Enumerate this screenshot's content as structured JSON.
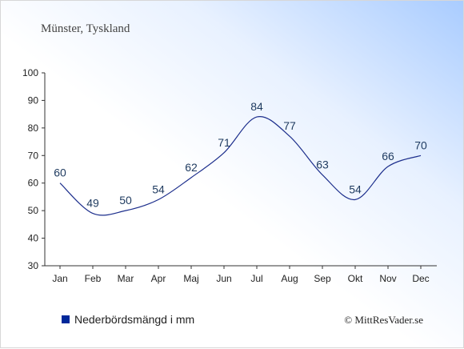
{
  "chart_data": {
    "type": "line",
    "title": "Münster, Tyskland",
    "categories": [
      "Jan",
      "Feb",
      "Mar",
      "Apr",
      "Maj",
      "Jun",
      "Jul",
      "Aug",
      "Sep",
      "Okt",
      "Nov",
      "Dec"
    ],
    "series": [
      {
        "name": "Nederbördsmängd i mm",
        "values": [
          60,
          49,
          50,
          54,
          62,
          71,
          84,
          77,
          63,
          54,
          66,
          70
        ],
        "color": "#00289a"
      }
    ],
    "y_ticks": [
      30,
      40,
      50,
      60,
      70,
      80,
      90,
      100
    ],
    "ylim": [
      30,
      100
    ],
    "xlabel": "",
    "ylabel": "",
    "grid": false,
    "legend_position": "bottom-left",
    "colors": {
      "line": "#1c2e8c",
      "legend_swatch": "#00289a",
      "axis": "#333333"
    }
  },
  "copyright": "© MittResVader.se"
}
